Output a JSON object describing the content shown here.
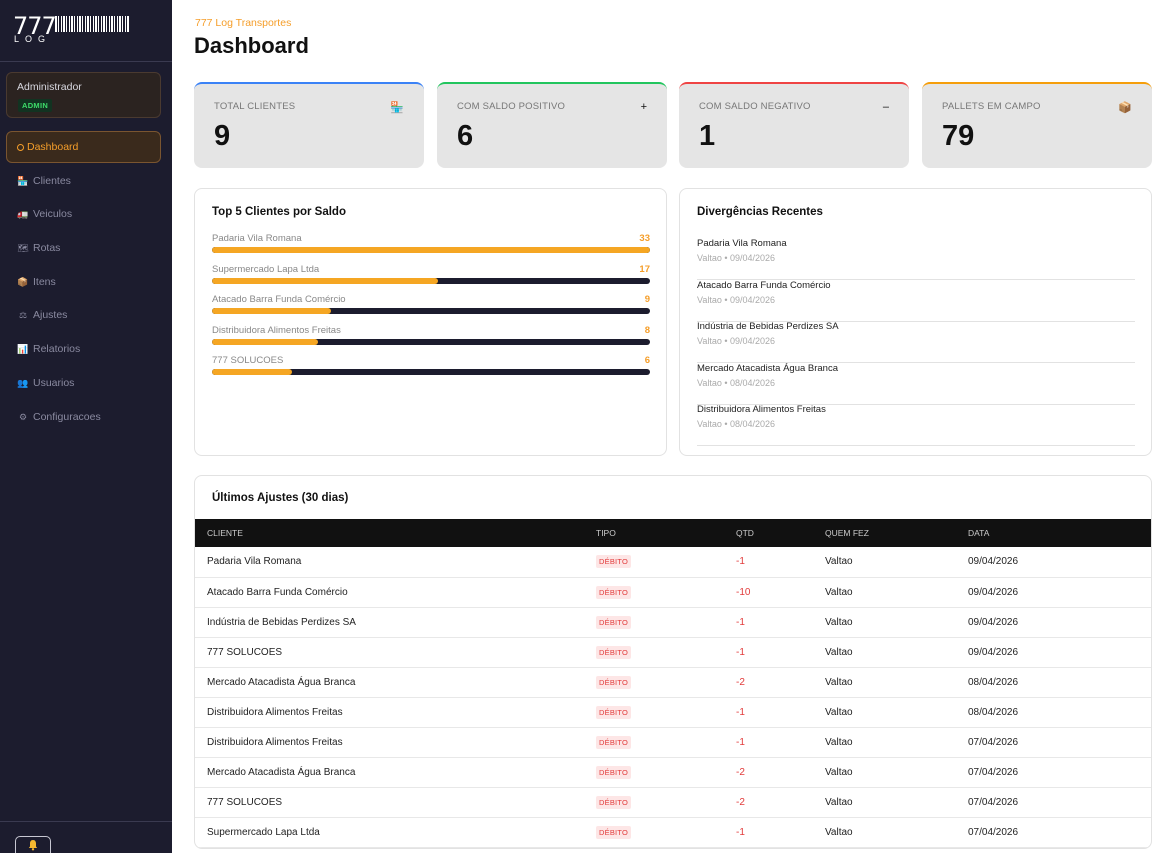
{
  "brand": {
    "number": "777",
    "word": "LOG"
  },
  "sidebar": {
    "user": {
      "name": "Administrador",
      "role": "ADMIN"
    },
    "items": [
      {
        "label": "Dashboard",
        "icon": "circle-icon",
        "glyph": "",
        "active": true
      },
      {
        "label": "Clientes",
        "icon": "store-icon",
        "glyph": "🏪",
        "active": false
      },
      {
        "label": "Veiculos",
        "icon": "truck-icon",
        "glyph": "🚛",
        "active": false
      },
      {
        "label": "Rotas",
        "icon": "map-icon",
        "glyph": "🗺",
        "active": false
      },
      {
        "label": "Itens",
        "icon": "box-icon",
        "glyph": "📦",
        "active": false
      },
      {
        "label": "Ajustes",
        "icon": "scale-icon",
        "glyph": "⚖",
        "active": false
      },
      {
        "label": "Relatorios",
        "icon": "chart-icon",
        "glyph": "📊",
        "active": false
      },
      {
        "label": "Usuarios",
        "icon": "users-icon",
        "glyph": "👥",
        "active": false
      },
      {
        "label": "Configuracoes",
        "icon": "gear-icon",
        "glyph": "⚙",
        "active": false
      }
    ]
  },
  "header": {
    "company": "777 Log Transportes",
    "title": "Dashboard"
  },
  "stats": [
    {
      "label": "TOTAL CLIENTES",
      "value": "9",
      "icon": "store-icon",
      "glyph": "🏪",
      "color": "#3b82f6"
    },
    {
      "label": "COM SALDO POSITIVO",
      "value": "6",
      "icon": "plus-icon",
      "glyph": "+",
      "color": "#22c55e"
    },
    {
      "label": "COM SALDO NEGATIVO",
      "value": "1",
      "icon": "minus-icon",
      "glyph": "–",
      "color": "#ef4444"
    },
    {
      "label": "PALLETS EM CAMPO",
      "value": "79",
      "icon": "box-icon",
      "glyph": "📦",
      "color": "#f59e0b"
    }
  ],
  "top5": {
    "title": "Top 5 Clientes por Saldo",
    "max": 33,
    "items": [
      {
        "name": "Padaria Vila Romana",
        "value": 33
      },
      {
        "name": "Supermercado Lapa Ltda",
        "value": 17
      },
      {
        "name": "Atacado Barra Funda Comércio",
        "value": 9
      },
      {
        "name": "Distribuidora Alimentos Freitas",
        "value": 8
      },
      {
        "name": "777 SOLUCOES",
        "value": 6
      }
    ]
  },
  "divergencias": {
    "title": "Divergências Recentes",
    "items": [
      {
        "name": "Padaria Vila Romana",
        "meta": "Valtao • 09/04/2026"
      },
      {
        "name": "Atacado Barra Funda Comércio",
        "meta": "Valtao • 09/04/2026"
      },
      {
        "name": "Indústria de Bebidas Perdizes SA",
        "meta": "Valtao • 09/04/2026"
      },
      {
        "name": "Mercado Atacadista Água Branca",
        "meta": "Valtao • 08/04/2026"
      },
      {
        "name": "Distribuidora Alimentos Freitas",
        "meta": "Valtao • 08/04/2026"
      }
    ]
  },
  "ajustes": {
    "title": "Últimos Ajustes (30 dias)",
    "columns": [
      "CLIENTE",
      "TIPO",
      "QTD",
      "QUEM FEZ",
      "DATA"
    ],
    "rows": [
      {
        "cliente": "Padaria Vila Romana",
        "tipo": "DÉBITO",
        "qtd": "-1",
        "quem": "Valtao",
        "data": "09/04/2026"
      },
      {
        "cliente": "Atacado Barra Funda Comércio",
        "tipo": "DÉBITO",
        "qtd": "-10",
        "quem": "Valtao",
        "data": "09/04/2026"
      },
      {
        "cliente": "Indústria de Bebidas Perdizes SA",
        "tipo": "DÉBITO",
        "qtd": "-1",
        "quem": "Valtao",
        "data": "09/04/2026"
      },
      {
        "cliente": "777 SOLUCOES",
        "tipo": "DÉBITO",
        "qtd": "-1",
        "quem": "Valtao",
        "data": "09/04/2026"
      },
      {
        "cliente": "Mercado Atacadista Água Branca",
        "tipo": "DÉBITO",
        "qtd": "-2",
        "quem": "Valtao",
        "data": "08/04/2026"
      },
      {
        "cliente": "Distribuidora Alimentos Freitas",
        "tipo": "DÉBITO",
        "qtd": "-1",
        "quem": "Valtao",
        "data": "08/04/2026"
      },
      {
        "cliente": "Distribuidora Alimentos Freitas",
        "tipo": "DÉBITO",
        "qtd": "-1",
        "quem": "Valtao",
        "data": "07/04/2026"
      },
      {
        "cliente": "Mercado Atacadista Água Branca",
        "tipo": "DÉBITO",
        "qtd": "-2",
        "quem": "Valtao",
        "data": "07/04/2026"
      },
      {
        "cliente": "777 SOLUCOES",
        "tipo": "DÉBITO",
        "qtd": "-2",
        "quem": "Valtao",
        "data": "07/04/2026"
      },
      {
        "cliente": "Supermercado Lapa Ltda",
        "tipo": "DÉBITO",
        "qtd": "-1",
        "quem": "Valtao",
        "data": "07/04/2026"
      }
    ]
  },
  "colors": {
    "accent": "#f59e2a",
    "sidebar": "#1c1c2e",
    "danger": "#e23b3b"
  }
}
